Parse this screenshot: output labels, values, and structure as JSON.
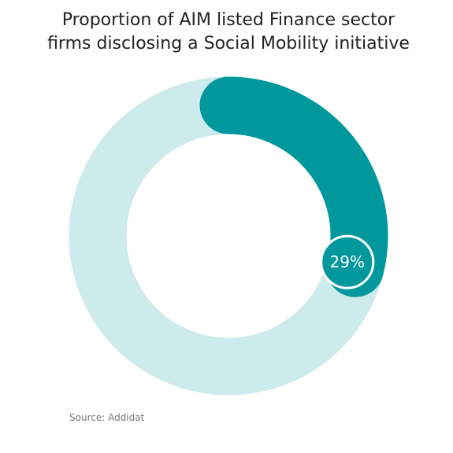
{
  "chart_data": {
    "type": "donut",
    "title": [
      "Proportion of AIM listed Finance sector",
      "firms disclosing a Social Mobility initiative"
    ],
    "value": 29,
    "value_label": "29%",
    "max": 100,
    "color": "#00979d",
    "track_color": "#cdeaec",
    "source": "Source: Addidat"
  }
}
